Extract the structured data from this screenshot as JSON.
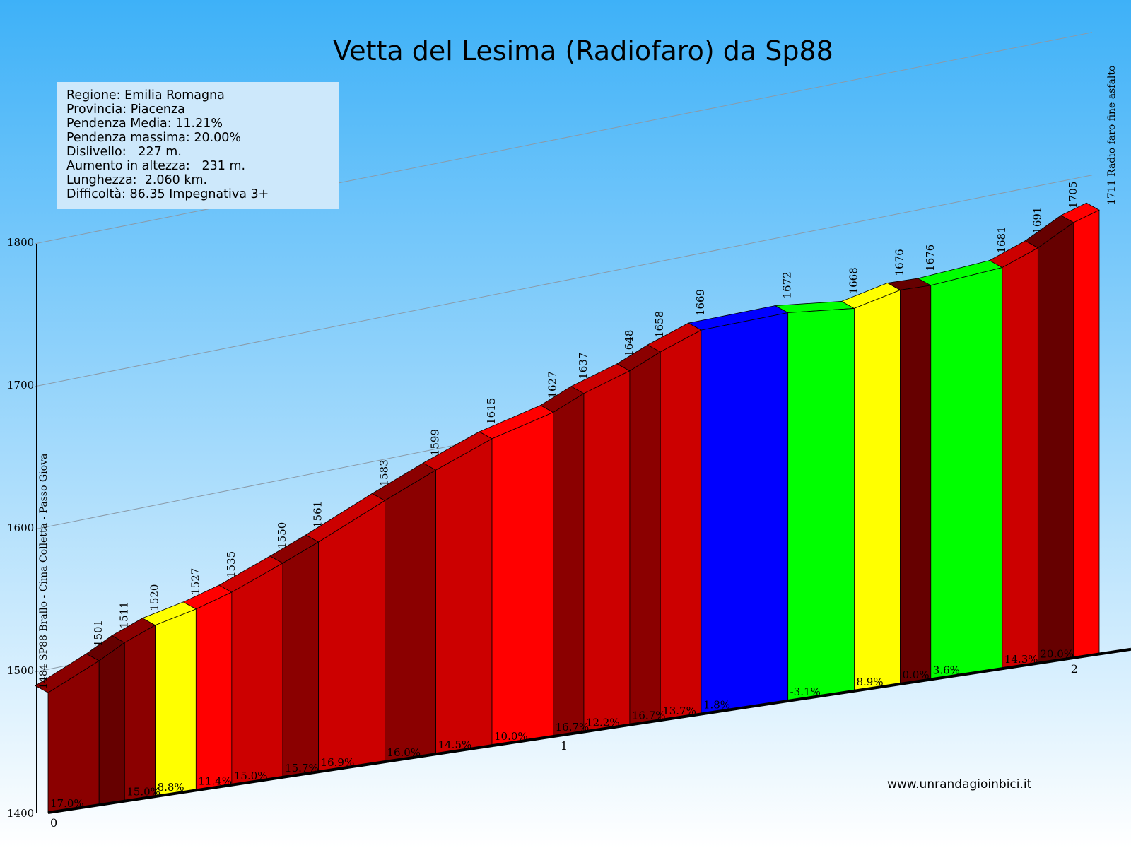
{
  "title": "Vetta del Lesima (Radiofaro) da Sp88",
  "info": [
    "Regione: Emilia Romagna",
    "Provincia: Piacenza",
    "Pendenza Media: 11.21%",
    "Pendenza massima: 20.00%",
    "Dislivello:   227 m.",
    "Aumento in altezza:   231 m.",
    "Lunghezza:  2.060 km.",
    "Difficoltà: 86.35 Impegnativa 3+"
  ],
  "credit": "www.unrandagioinbici.it",
  "colors": {
    "sky_top": "#3eb1f8",
    "sky_bottom": "#ffffff",
    "red": "#ff0000",
    "dark_red": "#cc0000",
    "maroon": "#8b0000",
    "deep_maroon": "#660000",
    "yellow": "#ffff00",
    "green": "#00ff00",
    "blue": "#0000ff"
  },
  "chart_data": {
    "type": "area",
    "title": "Vetta del Lesima (Radiofaro) da Sp88",
    "x_unit": "km",
    "y_unit": "m",
    "ylim": [
      1400,
      1800
    ],
    "y_ticks": [
      1400,
      1500,
      1600,
      1700,
      1800
    ],
    "x_ticks": [
      "0",
      "1",
      "2"
    ],
    "grid": true,
    "start_label": "1484 SP88 Brallo - Cima Colletta - Passo Giova",
    "end_label": "1711 Radio faro fine asfalto",
    "segments": [
      {
        "from_km": 0.0,
        "to_km": 0.1,
        "end_elev": 1501,
        "grade": "17.0%",
        "color": "maroon"
      },
      {
        "from_km": 0.1,
        "to_km": 0.15,
        "end_elev": 1511,
        "grade": "",
        "color": "deep_maroon"
      },
      {
        "from_km": 0.15,
        "to_km": 0.21,
        "end_elev": 1520,
        "grade": "15.0%",
        "color": "maroon"
      },
      {
        "from_km": 0.21,
        "to_km": 0.29,
        "end_elev": 1527,
        "grade": "8.8%",
        "color": "yellow"
      },
      {
        "from_km": 0.29,
        "to_km": 0.36,
        "end_elev": 1535,
        "grade": "11.4%",
        "color": "red"
      },
      {
        "from_km": 0.36,
        "to_km": 0.46,
        "end_elev": 1550,
        "grade": "15.0%",
        "color": "dark_red"
      },
      {
        "from_km": 0.46,
        "to_km": 0.53,
        "end_elev": 1561,
        "grade": "15.7%",
        "color": "maroon"
      },
      {
        "from_km": 0.53,
        "to_km": 0.66,
        "end_elev": 1583,
        "grade": "16.9%",
        "color": "dark_red"
      },
      {
        "from_km": 0.66,
        "to_km": 0.76,
        "end_elev": 1599,
        "grade": "16.0%",
        "color": "maroon"
      },
      {
        "from_km": 0.76,
        "to_km": 0.87,
        "end_elev": 1615,
        "grade": "14.5%",
        "color": "dark_red"
      },
      {
        "from_km": 0.87,
        "to_km": 0.99,
        "end_elev": 1627,
        "grade": "10.0%",
        "color": "red"
      },
      {
        "from_km": 0.99,
        "to_km": 1.05,
        "end_elev": 1637,
        "grade": "16.7%",
        "color": "maroon"
      },
      {
        "from_km": 1.05,
        "to_km": 1.14,
        "end_elev": 1648,
        "grade": "12.2%",
        "color": "dark_red"
      },
      {
        "from_km": 1.14,
        "to_km": 1.2,
        "end_elev": 1658,
        "grade": "16.7%",
        "color": "maroon"
      },
      {
        "from_km": 1.2,
        "to_km": 1.28,
        "end_elev": 1669,
        "grade": "13.7%",
        "color": "dark_red"
      },
      {
        "from_km": 1.28,
        "to_km": 1.45,
        "end_elev": 1672,
        "grade": "1.8%",
        "color": "blue"
      },
      {
        "from_km": 1.45,
        "to_km": 1.58,
        "end_elev": 1668,
        "grade": "-3.1%",
        "color": "green"
      },
      {
        "from_km": 1.58,
        "to_km": 1.67,
        "end_elev": 1676,
        "grade": "8.9%",
        "color": "yellow"
      },
      {
        "from_km": 1.67,
        "to_km": 1.73,
        "end_elev": 1676,
        "grade": "0.0%",
        "color": "deep_maroon"
      },
      {
        "from_km": 1.73,
        "to_km": 1.87,
        "end_elev": 1681,
        "grade": "3.6%",
        "color": "green"
      },
      {
        "from_km": 1.87,
        "to_km": 1.94,
        "end_elev": 1691,
        "grade": "14.3%",
        "color": "dark_red"
      },
      {
        "from_km": 1.94,
        "to_km": 2.01,
        "end_elev": 1705,
        "grade": "20.0%",
        "color": "deep_maroon"
      },
      {
        "from_km": 2.01,
        "to_km": 2.06,
        "end_elev": 1711,
        "grade": "",
        "color": "red"
      }
    ],
    "start_elev": 1484
  }
}
